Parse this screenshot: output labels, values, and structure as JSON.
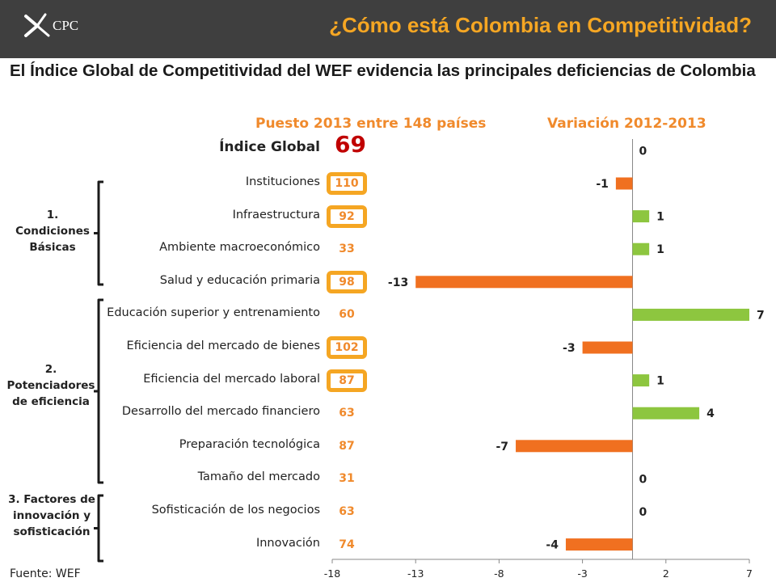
{
  "header": {
    "logo_text": "CPC",
    "title": "¿Cómo está Colombia en Competitividad?"
  },
  "subtitle": "El Índice Global de Competitividad del WEF evidencia las principales deficiencias de Colombia",
  "rank_header": "Puesto 2013 entre 148 países",
  "variation_header": "Variación 2012-2013",
  "global": {
    "label": "Índice Global",
    "rank": "69",
    "variation": 0,
    "variation_label": "0"
  },
  "groups": [
    {
      "label": "1. Condiciones Básicas"
    },
    {
      "label": "2. Potenciadores de eficiencia"
    },
    {
      "label": "3. Factores de innovación y sofisticación"
    }
  ],
  "footer": "Fuente: WEF",
  "colors": {
    "negative": "#f07020",
    "positive": "#8dc63f",
    "highlight": "#f5a623",
    "rank_text": "#f08a2c",
    "global_rank": "#c00000",
    "header_bg": "#3f3f3f"
  },
  "chart_data": {
    "type": "bar",
    "orientation": "horizontal",
    "categories": [
      "Instituciones",
      "Infraestructura",
      "Ambiente macroeconómico",
      "Salud y educación primaria",
      "Educación superior y entrenamiento",
      "Eficiencia del mercado de bienes",
      "Eficiencia del mercado laboral",
      "Desarrollo del mercado financiero",
      "Preparación tecnológica",
      "Tamaño del mercado",
      "Sofisticación de los negocios",
      "Innovación"
    ],
    "ranks": [
      "110",
      "92",
      "33",
      "98",
      "60",
      "102",
      "87",
      "63",
      "87",
      "31",
      "63",
      "74"
    ],
    "highlighted": [
      true,
      true,
      false,
      true,
      false,
      true,
      true,
      false,
      false,
      false,
      false,
      false
    ],
    "values": [
      -1,
      1,
      1,
      -13,
      7,
      -3,
      1,
      4,
      -7,
      0,
      0,
      -4
    ],
    "value_labels": [
      "-1",
      "1",
      "1",
      "-13",
      "7",
      "-3",
      "1",
      "4",
      "-7",
      "0",
      "0",
      "-4"
    ],
    "title": "Variación 2012-2013",
    "xlim": [
      -18,
      7
    ],
    "xticks": [
      -18,
      -13,
      -8,
      -3,
      2,
      7
    ],
    "xtick_labels": [
      "-18",
      "-13",
      "-8",
      "-3",
      "2",
      "7"
    ]
  }
}
